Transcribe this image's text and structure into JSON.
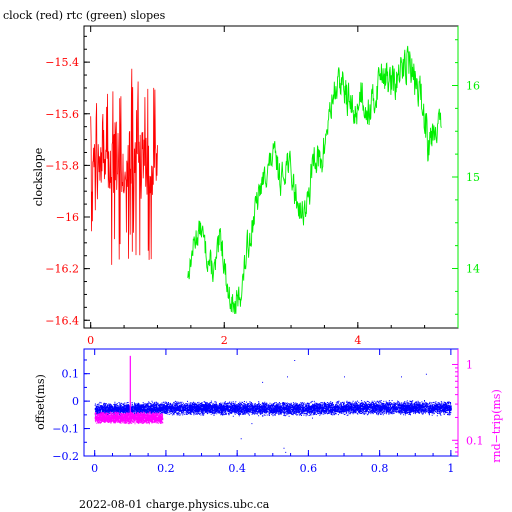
{
  "footer": "2022-08-01 charge.physics.ubc.ca",
  "colors": {
    "clock": "#ff0000",
    "rtc": "#00ee00",
    "offset": "#0000ff",
    "rndtrip": "#ff00ff",
    "frame": "#000000"
  },
  "chart_data": [
    {
      "type": "line",
      "title": "clock (red) rtc (green) slopes",
      "ylabel": "clockslope",
      "xlim": [
        -0.1,
        5.5
      ],
      "ylim": [
        -16.43,
        -15.26
      ],
      "xticks": [
        0,
        2,
        4
      ],
      "xtick_labels": [
        "0",
        "2",
        "4"
      ],
      "yticks": [
        -16.4,
        -16.2,
        -16,
        -15.8,
        -15.6,
        -15.4
      ],
      "ytick_labels": [
        "−16.4",
        "−16.2",
        "−16",
        "−15.8",
        "−15.6",
        "−15.4"
      ],
      "y2lim": [
        13.35,
        16.65
      ],
      "y2ticks": [
        14,
        15,
        16
      ],
      "y2tick_labels": [
        "14",
        "15",
        "16"
      ],
      "series": [
        {
          "name": "clock",
          "axis": "left",
          "x": [
            0.0,
            0.1,
            0.2,
            0.3,
            0.4,
            0.5,
            0.6,
            0.7,
            0.8,
            0.9,
            1.0
          ],
          "y": [
            -15.8,
            -15.78,
            -15.84,
            -15.8,
            -15.76,
            -15.82,
            -15.79,
            -15.81,
            -15.77,
            -15.8,
            -15.79
          ],
          "y_min": [
            -16.22,
            -15.98,
            -16.08,
            -16.27,
            -16.18,
            -16.13,
            -16.26,
            -16.12,
            -16.39,
            -16.25,
            -16.0
          ],
          "y_max": [
            -15.5,
            -15.51,
            -15.62,
            -15.42,
            -15.39,
            -15.52,
            -15.35,
            -15.47,
            -15.45,
            -15.35,
            -15.55
          ]
        },
        {
          "name": "rtc",
          "axis": "right",
          "x": [
            1.45,
            1.55,
            1.65,
            1.75,
            1.85,
            1.95,
            2.05,
            2.15,
            2.25,
            2.35,
            2.45,
            2.55,
            2.65,
            2.75,
            2.85,
            2.95,
            3.05,
            3.15,
            3.25,
            3.35,
            3.45,
            3.55,
            3.65,
            3.75,
            3.85,
            3.95,
            4.05,
            4.15,
            4.25,
            4.35,
            4.45,
            4.55,
            4.65,
            4.75,
            4.85,
            4.95,
            5.05,
            5.15,
            5.25
          ],
          "y": [
            13.9,
            14.3,
            14.45,
            14.1,
            13.95,
            14.35,
            13.75,
            13.55,
            13.75,
            14.25,
            14.6,
            14.9,
            15.1,
            15.25,
            14.95,
            15.2,
            14.85,
            14.6,
            14.7,
            15.3,
            15.1,
            15.6,
            15.95,
            16.05,
            15.85,
            15.65,
            15.95,
            15.7,
            15.85,
            16.2,
            16.05,
            16.0,
            16.15,
            16.3,
            16.05,
            15.85,
            15.45,
            15.55,
            15.6
          ],
          "y_min": [
            13.78,
            14.1,
            14.25,
            13.9,
            13.72,
            14.1,
            13.55,
            13.38,
            13.52,
            14.02,
            14.35,
            14.72,
            14.92,
            15.05,
            14.7,
            14.95,
            14.55,
            14.4,
            14.45,
            15.0,
            14.85,
            15.3,
            15.7,
            15.78,
            15.55,
            15.38,
            15.62,
            15.42,
            15.55,
            15.9,
            15.72,
            15.72,
            15.9,
            15.95,
            15.7,
            15.55,
            14.9,
            15.3,
            15.35
          ],
          "y_max": [
            14.05,
            14.55,
            14.62,
            14.35,
            14.2,
            14.7,
            13.95,
            13.8,
            13.98,
            14.55,
            14.85,
            15.12,
            15.38,
            15.5,
            15.2,
            15.45,
            15.1,
            14.85,
            14.95,
            15.6,
            15.4,
            15.88,
            16.2,
            16.3,
            16.15,
            15.9,
            16.25,
            15.95,
            16.15,
            16.5,
            16.3,
            16.35,
            16.45,
            16.6,
            16.35,
            16.2,
            15.75,
            15.8,
            15.85
          ]
        }
      ]
    },
    {
      "type": "scatter",
      "ylabel": "offset(ms)",
      "y2label": "rnd−trip(ms)",
      "xlim": [
        -0.03,
        1.02
      ],
      "ylim": [
        -0.2,
        0.19
      ],
      "xticks": [
        0,
        0.2,
        0.4,
        0.6,
        0.8,
        1
      ],
      "xtick_labels": [
        "0",
        "0.2",
        "0.4",
        "0.6",
        "0.8",
        "1"
      ],
      "yticks": [
        -0.2,
        -0.1,
        0,
        0.1
      ],
      "ytick_labels": [
        "−0.2",
        "−0.1",
        "0",
        "0.1"
      ],
      "y2scale": "log",
      "y2lim": [
        0.062,
        1.6
      ],
      "y2ticks": [
        0.1,
        1
      ],
      "y2tick_labels": [
        "0.1",
        "1"
      ],
      "series": [
        {
          "name": "offset",
          "axis": "left",
          "x_range": [
            0,
            1
          ],
          "y_center": [
            -0.03,
            -0.028,
            -0.025,
            -0.024,
            -0.025,
            -0.027,
            -0.026,
            -0.024,
            -0.022,
            -0.023,
            -0.025
          ],
          "y_spread": 0.02,
          "outliers": [
            [
              0.41,
              -0.135
            ],
            [
              0.44,
              -0.08
            ],
            [
              0.47,
              0.07
            ],
            [
              0.53,
              -0.17
            ],
            [
              0.535,
              -0.185
            ],
            [
              0.54,
              0.09
            ],
            [
              0.56,
              0.15
            ],
            [
              0.61,
              -0.06
            ],
            [
              0.7,
              0.09
            ],
            [
              0.86,
              0.09
            ],
            [
              0.93,
              0.1
            ]
          ]
        },
        {
          "name": "rnd-trip",
          "axis": "right",
          "x_range": [
            0,
            0.19
          ],
          "y_center": 0.2,
          "y_spread_log": 0.08,
          "spike": [
            0.1,
            1.3
          ]
        }
      ]
    }
  ]
}
